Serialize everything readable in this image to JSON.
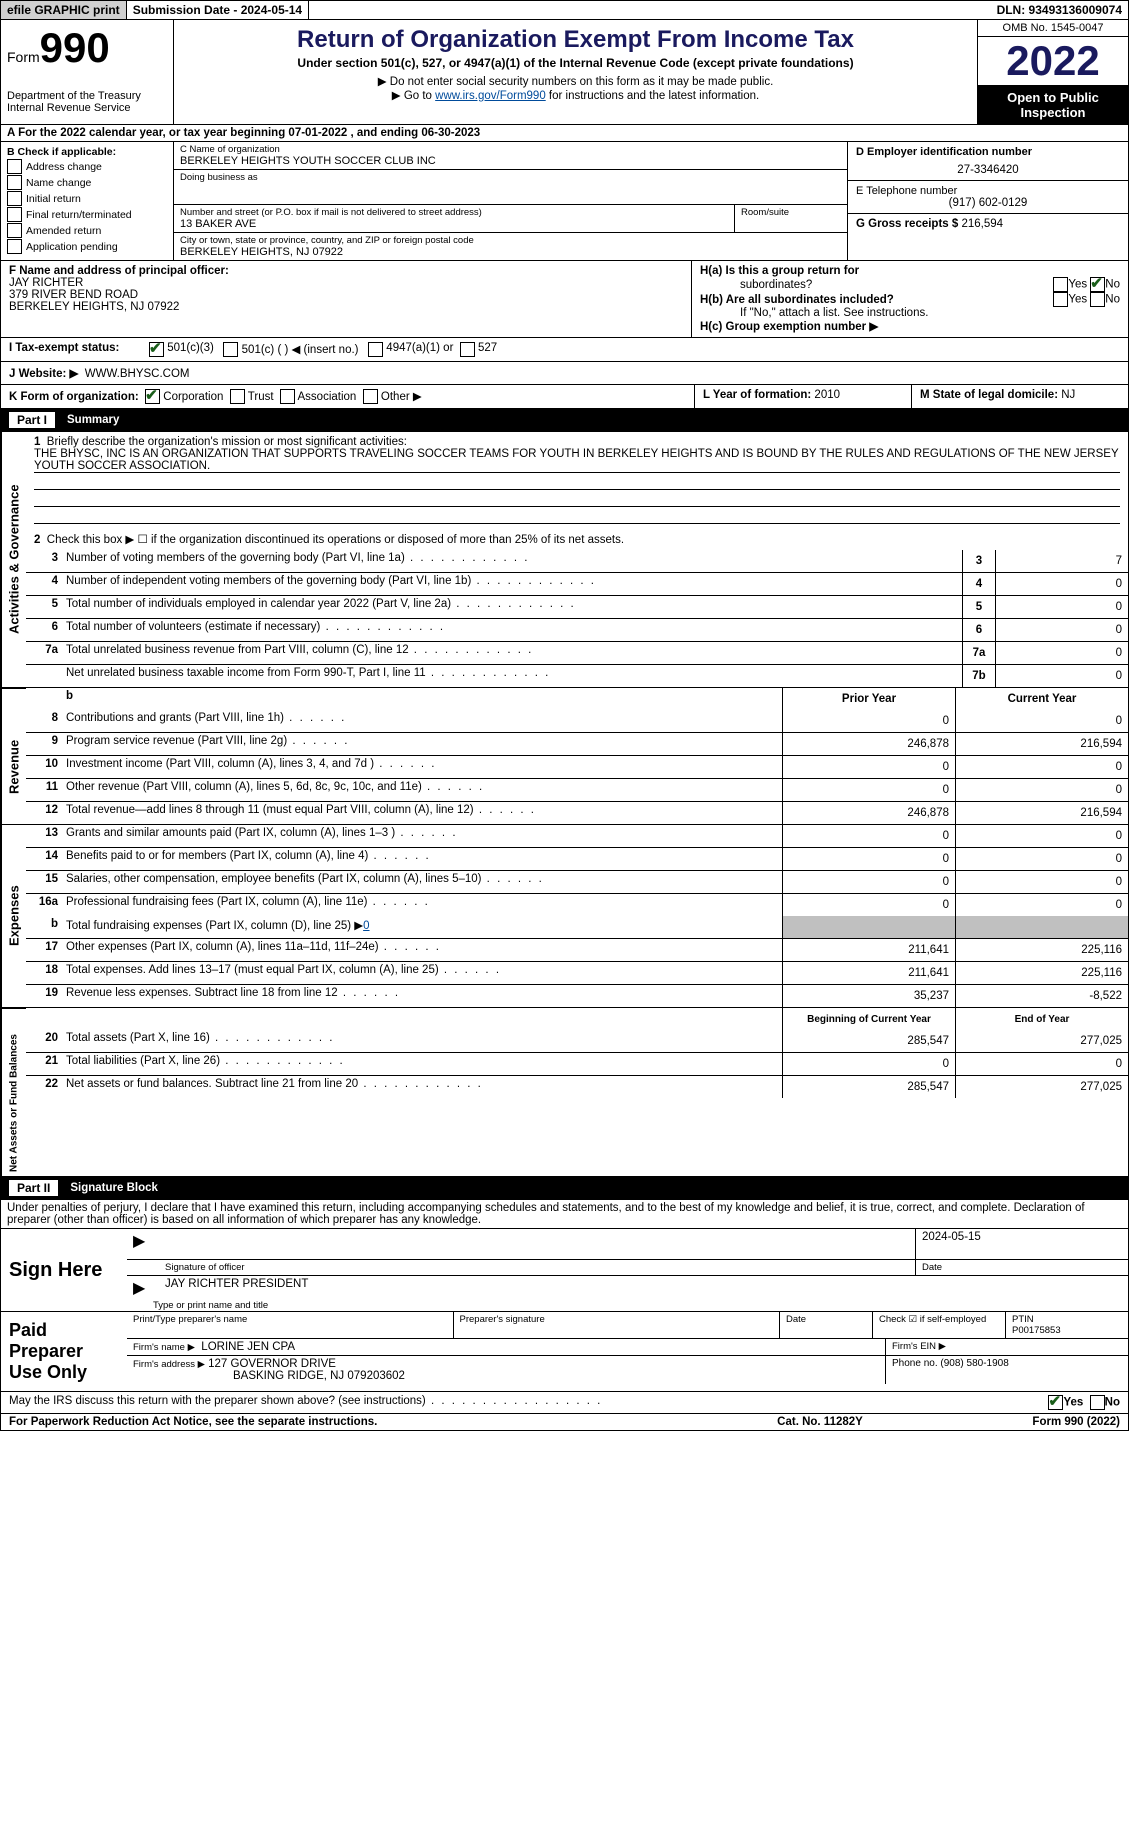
{
  "topbar": {
    "efile": "efile GRAPHIC print",
    "submission_label": "Submission Date - 2024-05-14",
    "dln_label": "DLN: 93493136009074"
  },
  "header": {
    "form_word": "Form",
    "form_num": "990",
    "dept1": "Department of the Treasury",
    "dept2": "Internal Revenue Service",
    "title": "Return of Organization Exempt From Income Tax",
    "subtitle": "Under section 501(c), 527, or 4947(a)(1) of the Internal Revenue Code (except private foundations)",
    "note1": "▶ Do not enter social security numbers on this form as it may be made public.",
    "note2_pre": "▶ Go to ",
    "note2_link": "www.irs.gov/Form990",
    "note2_post": " for instructions and the latest information.",
    "omb": "OMB No. 1545-0047",
    "year": "2022",
    "inspect": "Open to Public Inspection"
  },
  "row_a": "A  For the 2022 calendar year, or tax year beginning 07-01-2022    , and ending 06-30-2023",
  "col_b": {
    "header": "B Check if applicable:",
    "opts": [
      "Address change",
      "Name change",
      "Initial return",
      "Final return/terminated",
      "Amended return",
      "Application pending"
    ]
  },
  "col_c": {
    "name_label": "C Name of organization",
    "name": "BERKELEY HEIGHTS YOUTH SOCCER CLUB INC",
    "dba_label": "Doing business as",
    "addr_label": "Number and street (or P.O. box if mail is not delivered to street address)",
    "room_label": "Room/suite",
    "addr": "13 BAKER AVE",
    "city_label": "City or town, state or province, country, and ZIP or foreign postal code",
    "city": "BERKELEY HEIGHTS, NJ  07922"
  },
  "col_d": {
    "ein_label": "D Employer identification number",
    "ein": "27-3346420",
    "phone_label": "E Telephone number",
    "phone": "(917) 602-0129",
    "gross_label": "G Gross receipts $",
    "gross": "216,594"
  },
  "row_f": {
    "label": "F Name and address of principal officer:",
    "name": "JAY RICHTER",
    "addr1": "379 RIVER BEND ROAD",
    "addr2": "BERKELEY HEIGHTS, NJ  07922"
  },
  "row_h": {
    "ha": "H(a)  Is this a group return for",
    "ha2": "subordinates?",
    "hb": "H(b)  Are all subordinates included?",
    "hb_note": "If \"No,\" attach a list. See instructions.",
    "hc": "H(c)  Group exemption number ▶",
    "yes": "Yes",
    "no": "No"
  },
  "row_i": {
    "label": "I    Tax-exempt status:",
    "opt1": "501(c)(3)",
    "opt2": "501(c) (   ) ◀ (insert no.)",
    "opt3": "4947(a)(1) or",
    "opt4": "527"
  },
  "row_j": {
    "label": "J   Website: ▶",
    "val": "WWW.BHYSC.COM"
  },
  "row_k": {
    "label": "K Form of organization:",
    "opts": [
      "Corporation",
      "Trust",
      "Association",
      "Other ▶"
    ],
    "l_label": "L Year of formation:",
    "l_val": "2010",
    "m_label": "M State of legal domicile:",
    "m_val": "NJ"
  },
  "part1": {
    "label": "Part I",
    "title": "Summary"
  },
  "activities": {
    "vlabel": "Activities & Governance",
    "line1_label": "Briefly describe the organization's mission or most significant activities:",
    "line1_text": "THE BHYSC, INC IS AN ORGANIZATION THAT SUPPORTS TRAVELING SOCCER TEAMS FOR YOUTH IN BERKELEY HEIGHTS AND IS BOUND BY THE RULES AND REGULATIONS OF THE NEW JERSEY YOUTH SOCCER ASSOCIATION.",
    "line2": "Check this box ▶ ☐  if the organization discontinued its operations or disposed of more than 25% of its net assets.",
    "lines": [
      {
        "n": "3",
        "d": "Number of voting members of the governing body (Part VI, line 1a)",
        "box": "3",
        "v": "7"
      },
      {
        "n": "4",
        "d": "Number of independent voting members of the governing body (Part VI, line 1b)",
        "box": "4",
        "v": "0"
      },
      {
        "n": "5",
        "d": "Total number of individuals employed in calendar year 2022 (Part V, line 2a)",
        "box": "5",
        "v": "0"
      },
      {
        "n": "6",
        "d": "Total number of volunteers (estimate if necessary)",
        "box": "6",
        "v": "0"
      },
      {
        "n": "7a",
        "d": "Total unrelated business revenue from Part VIII, column (C), line 12",
        "box": "7a",
        "v": "0"
      },
      {
        "n": "",
        "d": "Net unrelated business taxable income from Form 990-T, Part I, line 11",
        "box": "7b",
        "v": "0"
      }
    ]
  },
  "revenue": {
    "vlabel": "Revenue",
    "prior_h": "Prior Year",
    "current_h": "Current Year",
    "lines": [
      {
        "n": "8",
        "d": "Contributions and grants (Part VIII, line 1h)",
        "p": "0",
        "c": "0"
      },
      {
        "n": "9",
        "d": "Program service revenue (Part VIII, line 2g)",
        "p": "246,878",
        "c": "216,594"
      },
      {
        "n": "10",
        "d": "Investment income (Part VIII, column (A), lines 3, 4, and 7d )",
        "p": "0",
        "c": "0"
      },
      {
        "n": "11",
        "d": "Other revenue (Part VIII, column (A), lines 5, 6d, 8c, 9c, 10c, and 11e)",
        "p": "0",
        "c": "0"
      },
      {
        "n": "12",
        "d": "Total revenue—add lines 8 through 11 (must equal Part VIII, column (A), line 12)",
        "p": "246,878",
        "c": "216,594"
      }
    ]
  },
  "expenses": {
    "vlabel": "Expenses",
    "lines": [
      {
        "n": "13",
        "d": "Grants and similar amounts paid (Part IX, column (A), lines 1–3 )",
        "p": "0",
        "c": "0"
      },
      {
        "n": "14",
        "d": "Benefits paid to or for members (Part IX, column (A), line 4)",
        "p": "0",
        "c": "0"
      },
      {
        "n": "15",
        "d": "Salaries, other compensation, employee benefits (Part IX, column (A), lines 5–10)",
        "p": "0",
        "c": "0"
      },
      {
        "n": "16a",
        "d": "Professional fundraising fees (Part IX, column (A), line 11e)",
        "p": "0",
        "c": "0"
      }
    ],
    "line_b_pre": "Total fundraising expenses (Part IX, column (D), line 25) ▶",
    "line_b_val": "0",
    "lines2": [
      {
        "n": "17",
        "d": "Other expenses (Part IX, column (A), lines 11a–11d, 11f–24e)",
        "p": "211,641",
        "c": "225,116"
      },
      {
        "n": "18",
        "d": "Total expenses. Add lines 13–17 (must equal Part IX, column (A), line 25)",
        "p": "211,641",
        "c": "225,116"
      },
      {
        "n": "19",
        "d": "Revenue less expenses. Subtract line 18 from line 12",
        "p": "35,237",
        "c": "-8,522"
      }
    ]
  },
  "netassets": {
    "vlabel": "Net Assets or Fund Balances",
    "begin_h": "Beginning of Current Year",
    "end_h": "End of Year",
    "lines": [
      {
        "n": "20",
        "d": "Total assets (Part X, line 16)",
        "p": "285,547",
        "c": "277,025"
      },
      {
        "n": "21",
        "d": "Total liabilities (Part X, line 26)",
        "p": "0",
        "c": "0"
      },
      {
        "n": "22",
        "d": "Net assets or fund balances. Subtract line 21 from line 20",
        "p": "285,547",
        "c": "277,025"
      }
    ]
  },
  "part2": {
    "label": "Part II",
    "title": "Signature Block"
  },
  "sig_declare": "Under penalties of perjury, I declare that I have examined this return, including accompanying schedules and statements, and to the best of my knowledge and belief, it is true, correct, and complete. Declaration of preparer (other than officer) is based on all information of which preparer has any knowledge.",
  "sign_here": {
    "label": "Sign Here",
    "sig_officer": "Signature of officer",
    "date": "2024-05-15",
    "date_label": "Date",
    "name": "JAY RICHTER  PRESIDENT",
    "name_label": "Type or print name and title"
  },
  "paid_prep": {
    "label": "Paid Preparer Use Only",
    "print_name_label": "Print/Type preparer's name",
    "sig_label": "Preparer's signature",
    "date_label": "Date",
    "check_label": "Check ☑ if self-employed",
    "ptin_label": "PTIN",
    "ptin": "P00175853",
    "firm_name_label": "Firm's name    ▶",
    "firm_name": "LORINE JEN CPA",
    "firm_ein_label": "Firm's EIN ▶",
    "firm_addr_label": "Firm's address ▶",
    "firm_addr1": "127 GOVERNOR DRIVE",
    "firm_addr2": "BASKING RIDGE, NJ  079203602",
    "phone_label": "Phone no.",
    "phone": "(908) 580-1908"
  },
  "discuss": {
    "text": "May the IRS discuss this return with the preparer shown above? (see instructions)",
    "yes": "Yes",
    "no": "No"
  },
  "footer": {
    "left": "For Paperwork Reduction Act Notice, see the separate instructions.",
    "mid": "Cat. No. 11282Y",
    "right": "Form 990 (2022)"
  }
}
